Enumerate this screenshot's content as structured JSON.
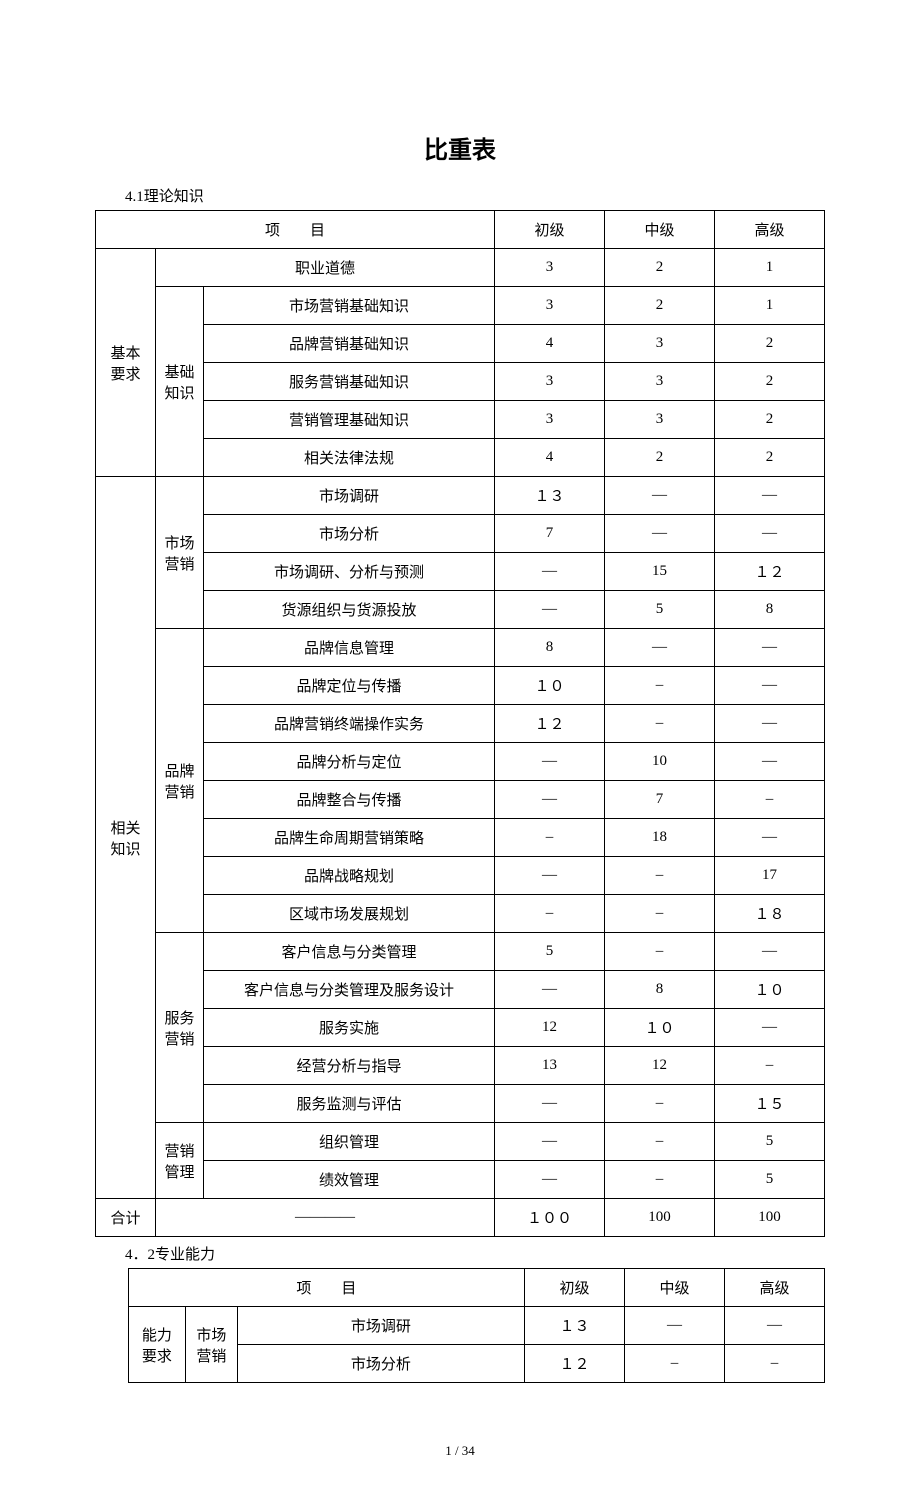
{
  "title": "比重表",
  "section1_label": "4.1理论知识",
  "section2_label": "4．2专业能力",
  "page_number": "1 / 34",
  "headers": {
    "item": "项　　目",
    "level1": "初级",
    "level2": "中级",
    "level3": "高级"
  },
  "table1": {
    "groupA": {
      "label": "基本\n要求"
    },
    "groupB": {
      "label": "相关\n知识"
    },
    "totalLabel": "合计",
    "totalDash": "————",
    "totalV1": "１００",
    "totalV2": "100",
    "totalV3": "100",
    "subA1": {
      "label": "职业道德",
      "v1": "3",
      "v2": "2",
      "v3": "1"
    },
    "subA2": {
      "label": "基础\n知识"
    },
    "subA2_rows": [
      {
        "label": "市场营销基础知识",
        "v1": "3",
        "v2": "2",
        "v3": "1"
      },
      {
        "label": "品牌营销基础知识",
        "v1": "4",
        "v2": "3",
        "v3": "2"
      },
      {
        "label": "服务营销基础知识",
        "v1": "3",
        "v2": "3",
        "v3": "2"
      },
      {
        "label": "营销管理基础知识",
        "v1": "3",
        "v2": "3",
        "v3": "2"
      },
      {
        "label": "相关法律法规",
        "v1": "4",
        "v2": "2",
        "v3": "2"
      }
    ],
    "subB1": {
      "label": "市场\n营销"
    },
    "subB1_rows": [
      {
        "label": "市场调研",
        "v1": "１３",
        "v2": "—",
        "v3": "—"
      },
      {
        "label": "市场分析",
        "v1": "7",
        "v2": "—",
        "v3": "—"
      },
      {
        "label": "市场调研、分析与预测",
        "v1": "—",
        "v2": "15",
        "v3": "１２"
      },
      {
        "label": "货源组织与货源投放",
        "v1": "—",
        "v2": "5",
        "v3": "8"
      }
    ],
    "subB2": {
      "label": "品牌\n营销"
    },
    "subB2_rows": [
      {
        "label": "品牌信息管理",
        "v1": "8",
        "v2": "—",
        "v3": "—"
      },
      {
        "label": "品牌定位与传播",
        "v1": "１０",
        "v2": "–",
        "v3": "—"
      },
      {
        "label": "品牌营销终端操作实务",
        "v1": "１２",
        "v2": "–",
        "v3": "—"
      },
      {
        "label": "品牌分析与定位",
        "v1": "—",
        "v2": "10",
        "v3": "—"
      },
      {
        "label": "品牌整合与传播",
        "v1": "—",
        "v2": "7",
        "v3": "–"
      },
      {
        "label": "品牌生命周期营销策略",
        "v1": "–",
        "v2": "18",
        "v3": "—"
      },
      {
        "label": "品牌战略规划",
        "v1": "—",
        "v2": "–",
        "v3": "17"
      },
      {
        "label": "区域市场发展规划",
        "v1": "–",
        "v2": "–",
        "v3": "１８"
      }
    ],
    "subB3": {
      "label": "服务\n营销"
    },
    "subB3_rows": [
      {
        "label": "客户信息与分类管理",
        "v1": "5",
        "v2": "–",
        "v3": "—"
      },
      {
        "label": "客户信息与分类管理及服务设计",
        "v1": "—",
        "v2": "8",
        "v3": "１０"
      },
      {
        "label": "服务实施",
        "v1": "12",
        "v2": "１０",
        "v3": "—"
      },
      {
        "label": "经营分析与指导",
        "v1": "13",
        "v2": "12",
        "v3": "–"
      },
      {
        "label": "服务监测与评估",
        "v1": "—",
        "v2": "–",
        "v3": "１５"
      }
    ],
    "subB4": {
      "label": "营销\n管理"
    },
    "subB4_rows": [
      {
        "label": "组织管理",
        "v1": "—",
        "v2": "–",
        "v3": "5"
      },
      {
        "label": "绩效管理",
        "v1": "—",
        "v2": "–",
        "v3": "5"
      }
    ]
  },
  "table2": {
    "groupA": {
      "label": "能力\n要求"
    },
    "subA1": {
      "label": "市场\n营销"
    },
    "rows": [
      {
        "label": "市场调研",
        "v1": "１３",
        "v2": "—",
        "v3": "—"
      },
      {
        "label": "市场分析",
        "v1": "１２",
        "v2": "–",
        "v3": "–"
      }
    ]
  }
}
